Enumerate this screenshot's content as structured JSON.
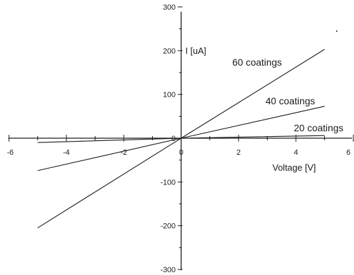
{
  "chart_data": {
    "type": "line",
    "title": "",
    "xlabel": "Voltage   [V]",
    "ylabel": "I [uA]",
    "xlim": [
      -6,
      6
    ],
    "ylim": [
      -300,
      300
    ],
    "x_ticks": [
      -6,
      -4,
      -2,
      0,
      2,
      4,
      6
    ],
    "y_ticks": [
      -300,
      -200,
      -100,
      0,
      100,
      200,
      300
    ],
    "grid": false,
    "legend": "none",
    "series": [
      {
        "name": "60 coatings",
        "x": [
          -5,
          0,
          5
        ],
        "y": [
          -205,
          0,
          203
        ]
      },
      {
        "name": "40 coatings",
        "x": [
          -5,
          0,
          5
        ],
        "y": [
          -74,
          0,
          73
        ]
      },
      {
        "name": "20 coatings",
        "x": [
          -5,
          0,
          5
        ],
        "y": [
          -10,
          0,
          6
        ]
      }
    ]
  }
}
